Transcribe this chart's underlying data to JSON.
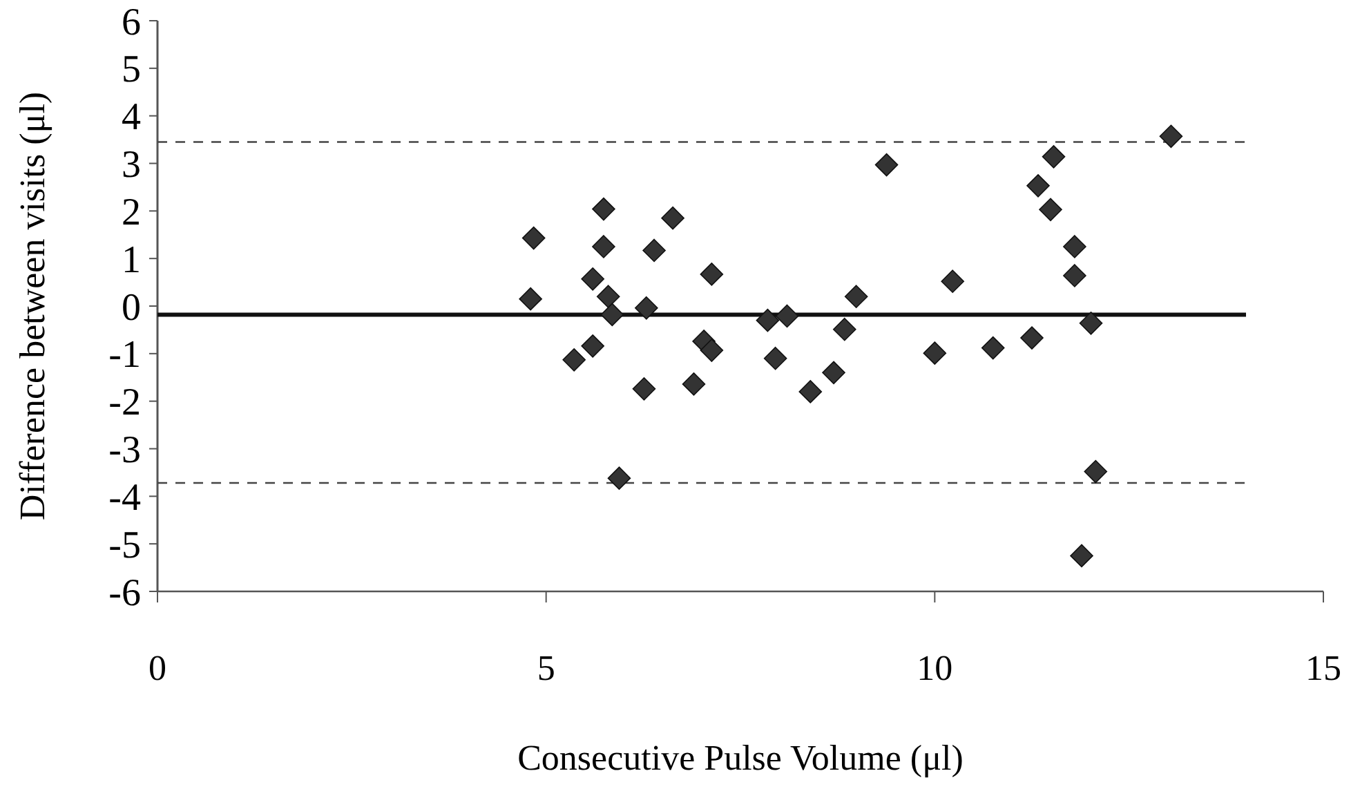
{
  "chart_data": {
    "type": "scatter",
    "xlabel": "Consecutive Pulse Volume (μl)",
    "ylabel": "Difference between visits (μl)",
    "xlim": [
      0,
      15
    ],
    "ylim": [
      -6,
      6
    ],
    "xticks": [
      0,
      5,
      10,
      15
    ],
    "yticks": [
      -6,
      -5,
      -4,
      -3,
      -2,
      -1,
      0,
      1,
      2,
      3,
      4,
      5,
      6
    ],
    "grid": false,
    "marker": "diamond",
    "series": [
      {
        "color": "#333333",
        "x": [
          4.84,
          4.8,
          5.74,
          5.74,
          5.6,
          5.8,
          5.85,
          5.6,
          5.36,
          6.63,
          6.39,
          6.29,
          6.26,
          5.94,
          7.13,
          6.9,
          7.03,
          7.13,
          7.85,
          8.1,
          7.95,
          8.4,
          8.7,
          8.84,
          8.99,
          9.38,
          10.23,
          10.0,
          13.04,
          11.53,
          11.33,
          11.49,
          11.8,
          11.8,
          12.01,
          10.75,
          11.25,
          12.07,
          11.89
        ],
        "values": [
          1.43,
          0.15,
          2.04,
          1.25,
          0.57,
          0.2,
          -0.18,
          -0.84,
          -1.13,
          1.85,
          1.17,
          -0.04,
          -1.74,
          -3.62,
          0.67,
          -1.64,
          -0.74,
          -0.93,
          -0.3,
          -0.21,
          -1.1,
          -1.8,
          -1.4,
          -0.49,
          0.2,
          2.97,
          0.52,
          -0.99,
          3.57,
          3.14,
          2.53,
          2.03,
          1.25,
          0.64,
          -0.36,
          -0.88,
          -0.67,
          -3.48,
          -5.25
        ]
      }
    ],
    "ref_lines": [
      {
        "axis": "y",
        "value": 3.45,
        "line_style": "dashed",
        "color": "#444444"
      },
      {
        "axis": "y",
        "value": -0.18,
        "line_style": "solid",
        "color": "#111111"
      },
      {
        "axis": "y",
        "value": -3.72,
        "line_style": "dashed",
        "color": "#444444"
      }
    ]
  }
}
